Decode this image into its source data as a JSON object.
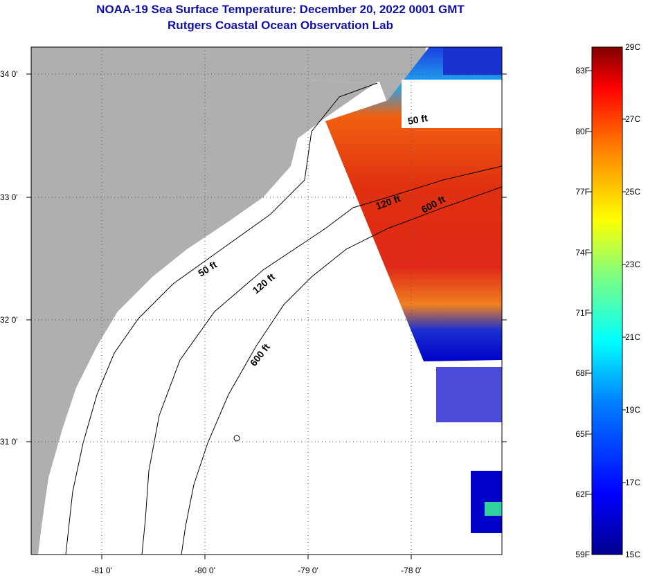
{
  "header": {
    "title": "NOAA-19 Sea Surface Temperature:  December 20, 2022 0001 GMT",
    "subtitle": "Rutgers Coastal Ocean Observation Lab"
  },
  "map": {
    "lat_labels": [
      "34 0'",
      "33 0'",
      "32 0'",
      "31 0'"
    ],
    "lon_labels": [
      "-81 0'",
      "-80 0'",
      "-79 0'",
      "-78 0'"
    ],
    "contours": [
      {
        "depth": "50 ft",
        "label": "50 ft"
      },
      {
        "depth": "120 ft",
        "label": "120 ft"
      },
      {
        "depth": "600 ft",
        "label": "600 ft"
      }
    ],
    "colors": {
      "land": "#afafaf",
      "ocean": "#ffffff",
      "grid": "#555555"
    }
  },
  "colorbar": {
    "fahrenheit": [
      "83F",
      "80F",
      "77F",
      "74F",
      "71F",
      "68F",
      "65F",
      "62F",
      "59F"
    ],
    "celsius": [
      "29C",
      "27C",
      "25C",
      "23C",
      "21C",
      "19C",
      "17C",
      "15C"
    ],
    "min_c": 15,
    "max_c": 29
  }
}
